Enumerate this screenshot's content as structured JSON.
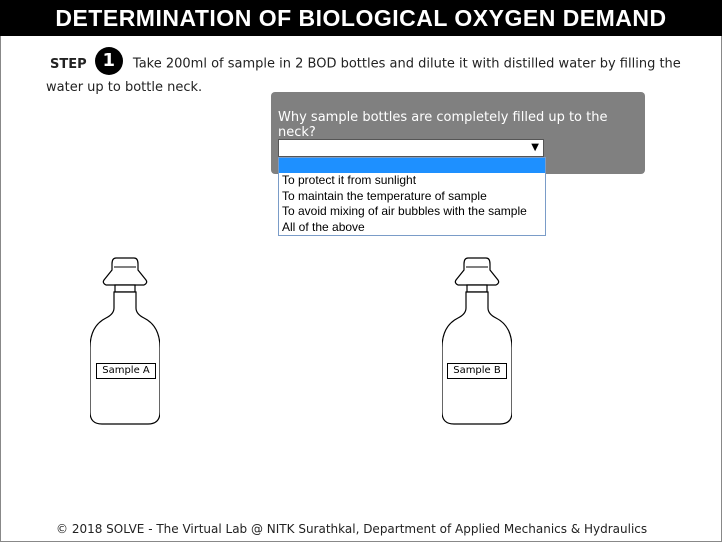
{
  "header": {
    "title": "DETERMINATION OF BIOLOGICAL OXYGEN DEMAND"
  },
  "step": {
    "label": "STEP",
    "number": "1",
    "instruction": "Take 200ml of sample in 2 BOD bottles and dilute it with distilled water by filling the water up to bottle neck."
  },
  "question": {
    "text": "Why sample bottles are completely filled up to the neck?",
    "selected_value": "",
    "options": [
      "",
      "To protect it from sunlight",
      "To maintain the temperature of sample",
      "To avoid mixing of air bubbles with the sample",
      "All of the above"
    ]
  },
  "bottles": {
    "a_label": "Sample A",
    "b_label": "Sample B"
  },
  "footer": {
    "text": "© 2018 SOLVE - The Virtual Lab @ NITK Surathkal, Department of Applied Mechanics & Hydraulics"
  }
}
